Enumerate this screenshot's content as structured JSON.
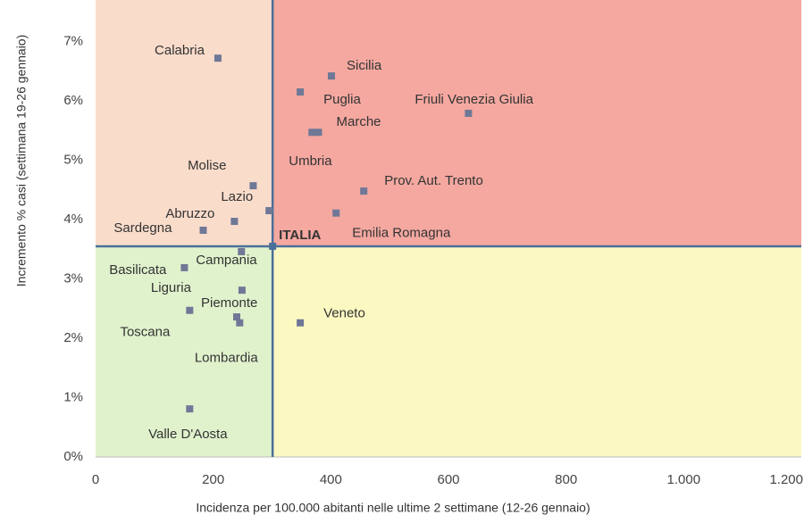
{
  "chart_data": {
    "type": "scatter",
    "x_label": "Incidenza per 100.000 abitanti nelle ultime 2 settimane (12-26 gennaio)",
    "y_label": "Incremento % casi (settimana 19-26 gennaio)",
    "labels": [
      "Calabria",
      "Sicilia",
      "Puglia",
      "Friuli Venezia Giulia",
      "Marche",
      "Umbria",
      "Prov. Aut. Trento",
      "Emilia Romagna",
      "Molise",
      "Lazio",
      "Abruzzo",
      "Sardegna",
      "Campania",
      "Basilicata",
      "Liguria",
      "Piemonte",
      "Lombardia",
      "Toscana",
      "Veneto",
      "Valle D'Aosta"
    ],
    "x": [
      208,
      401,
      348,
      634,
      379,
      368,
      456,
      409,
      268,
      295,
      236,
      183,
      248,
      151,
      249,
      240,
      245,
      160,
      348,
      160
    ],
    "y": [
      6.72,
      6.42,
      6.15,
      5.79,
      5.47,
      5.47,
      4.48,
      4.11,
      4.57,
      4.15,
      3.97,
      3.82,
      3.46,
      3.19,
      2.81,
      2.36,
      2.26,
      2.47,
      2.26,
      0.81
    ],
    "color": "#6f7896",
    "reference": {
      "label": "ITALIA",
      "x": 301,
      "y": 3.55,
      "color": "#4a6f9a"
    },
    "quadrant_colors": {
      "top_left": "#fadccb",
      "top_right": "#f4a8a0",
      "bottom_left": "#e0f2cc",
      "bottom_right": "#fcf8c2"
    },
    "xlim": [
      0,
      1200
    ],
    "xticks": [
      0,
      200,
      400,
      600,
      800,
      {
        "value": 1000,
        "label": "1.000"
      },
      {
        "value": 1200,
        "label": "1.200"
      }
    ],
    "ylim": [
      0,
      7.7
    ],
    "yticks": [
      {
        "value": 0,
        "label": "0%"
      },
      {
        "value": 1,
        "label": "1%"
      },
      {
        "value": 2,
        "label": "2%"
      },
      {
        "value": 3,
        "label": "3%"
      },
      {
        "value": 4,
        "label": "4%"
      },
      {
        "value": 5,
        "label": "5%"
      },
      {
        "value": 6,
        "label": "6%"
      },
      {
        "value": 7,
        "label": "7%"
      }
    ]
  }
}
